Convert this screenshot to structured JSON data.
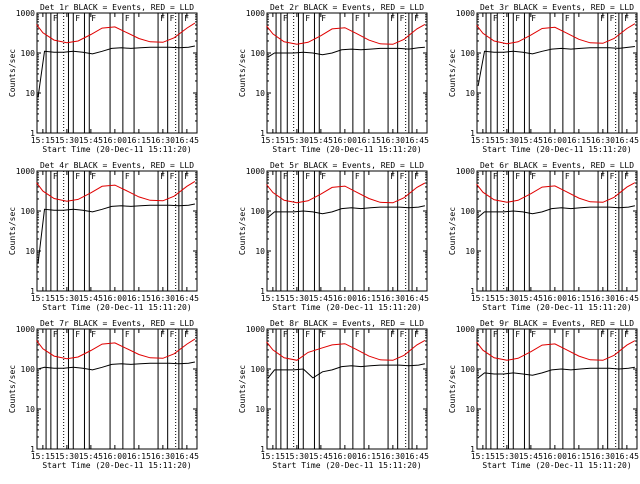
{
  "colors": {
    "events": "#000000",
    "lld": "#e00000",
    "axis": "#000000",
    "background": "#ffffff"
  },
  "chart_data": [
    {
      "type": "line",
      "title": "Det 1r BLACK = Events, RED = LLD",
      "xlabel": "Start Time (20-Dec-11 15:11:20)",
      "ylabel": "Counts/sec",
      "x_ticklabels": [
        "15:15",
        "15:30",
        "15:45",
        "16:00",
        "16:15",
        "16:30",
        "16:45"
      ],
      "y_ticklabels": [
        "1",
        "10",
        "100",
        "1000"
      ],
      "ylim": [
        1,
        1000
      ],
      "yscale": "log",
      "grid": false,
      "flag_labels": [
        "F",
        "F",
        "F",
        "F",
        "F",
        "F",
        "F"
      ],
      "series": [
        {
          "color": "#e00000",
          "x": [
            "15:11",
            "15:15",
            "15:22",
            "15:30",
            "15:37",
            "15:45",
            "15:52",
            "16:00",
            "16:07",
            "16:15",
            "16:22",
            "16:30",
            "16:37",
            "16:45",
            "16:50"
          ],
          "y": [
            520,
            320,
            210,
            180,
            200,
            290,
            420,
            450,
            330,
            230,
            190,
            185,
            240,
            420,
            560
          ]
        },
        {
          "color": "#000000",
          "x": [
            "15:12",
            "15:16",
            "15:22",
            "15:28",
            "15:34",
            "15:40",
            "15:46",
            "15:52",
            "15:58",
            "16:04",
            "16:10",
            "16:16",
            "16:22",
            "16:28",
            "16:34",
            "16:40",
            "16:46",
            "16:50"
          ],
          "y": [
            8,
            110,
            105,
            105,
            110,
            105,
            95,
            110,
            130,
            135,
            130,
            135,
            140,
            140,
            140,
            135,
            140,
            150
          ]
        }
      ]
    },
    {
      "type": "line",
      "title": "Det 2r BLACK = Events, RED = LLD",
      "xlabel": "Start Time (20-Dec-11 15:11:20)",
      "ylabel": "Counts/sec",
      "x_ticklabels": [
        "15:15",
        "15:30",
        "15:45",
        "16:00",
        "16:15",
        "16:30",
        "16:45"
      ],
      "y_ticklabels": [
        "1",
        "10",
        "100",
        "1000"
      ],
      "ylim": [
        1,
        1000
      ],
      "yscale": "log",
      "grid": false,
      "flag_labels": [
        "F",
        "F",
        "F",
        "F",
        "F",
        "F",
        "F"
      ],
      "series": [
        {
          "color": "#e00000",
          "x": [
            "15:11",
            "15:15",
            "15:22",
            "15:30",
            "15:37",
            "15:45",
            "15:52",
            "16:00",
            "16:07",
            "16:15",
            "16:22",
            "16:30",
            "16:37",
            "16:45",
            "16:50"
          ],
          "y": [
            480,
            300,
            190,
            165,
            185,
            270,
            400,
            430,
            310,
            210,
            170,
            165,
            220,
            400,
            520
          ]
        },
        {
          "color": "#000000",
          "x": [
            "15:12",
            "15:16",
            "15:22",
            "15:28",
            "15:34",
            "15:40",
            "15:46",
            "15:52",
            "15:58",
            "16:04",
            "16:10",
            "16:16",
            "16:22",
            "16:28",
            "16:34",
            "16:40",
            "16:46",
            "16:50"
          ],
          "y": [
            80,
            100,
            100,
            100,
            105,
            100,
            90,
            100,
            120,
            125,
            120,
            125,
            130,
            130,
            130,
            125,
            135,
            140
          ]
        }
      ]
    },
    {
      "type": "line",
      "title": "Det 3r BLACK = Events, RED = LLD",
      "xlabel": "Start Time (20-Dec-11 15:11:20)",
      "ylabel": "Counts/sec",
      "x_ticklabels": [
        "15:15",
        "15:30",
        "15:45",
        "16:00",
        "16:15",
        "16:30",
        "16:45"
      ],
      "y_ticklabels": [
        "1",
        "10",
        "100",
        "1000"
      ],
      "ylim": [
        1,
        1000
      ],
      "yscale": "log",
      "grid": false,
      "flag_labels": [
        "F",
        "F",
        "F",
        "F",
        "F",
        "F",
        "F"
      ],
      "series": [
        {
          "color": "#e00000",
          "x": [
            "15:11",
            "15:15",
            "15:22",
            "15:30",
            "15:37",
            "15:45",
            "15:52",
            "16:00",
            "16:07",
            "16:15",
            "16:22",
            "16:30",
            "16:37",
            "16:45",
            "16:50"
          ],
          "y": [
            500,
            310,
            200,
            170,
            190,
            280,
            410,
            440,
            320,
            220,
            180,
            175,
            230,
            410,
            540
          ]
        },
        {
          "color": "#000000",
          "x": [
            "15:12",
            "15:16",
            "15:22",
            "15:28",
            "15:34",
            "15:40",
            "15:46",
            "15:52",
            "15:58",
            "16:04",
            "16:10",
            "16:16",
            "16:22",
            "16:28",
            "16:34",
            "16:40",
            "16:46",
            "16:50"
          ],
          "y": [
            15,
            110,
            105,
            105,
            110,
            105,
            95,
            110,
            125,
            130,
            125,
            130,
            135,
            135,
            135,
            130,
            140,
            145
          ]
        }
      ]
    },
    {
      "type": "line",
      "title": "Det 4r BLACK = Events, RED = LLD",
      "xlabel": "Start Time (20-Dec-11 15:11:20)",
      "ylabel": "Counts/sec",
      "x_ticklabels": [
        "15:15",
        "15:30",
        "15:45",
        "16:00",
        "16:15",
        "16:30",
        "16:45"
      ],
      "y_ticklabels": [
        "1",
        "10",
        "100",
        "1000"
      ],
      "ylim": [
        1,
        1000
      ],
      "yscale": "log",
      "grid": false,
      "flag_labels": [
        "F",
        "F",
        "F",
        "F",
        "F",
        "F",
        "F"
      ],
      "series": [
        {
          "color": "#e00000",
          "x": [
            "15:11",
            "15:15",
            "15:22",
            "15:30",
            "15:37",
            "15:45",
            "15:52",
            "16:00",
            "16:07",
            "16:15",
            "16:22",
            "16:30",
            "16:37",
            "16:45",
            "16:50"
          ],
          "y": [
            510,
            315,
            205,
            175,
            195,
            285,
            415,
            445,
            325,
            225,
            185,
            180,
            235,
            415,
            550
          ]
        },
        {
          "color": "#000000",
          "x": [
            "15:12",
            "15:16",
            "15:22",
            "15:28",
            "15:34",
            "15:40",
            "15:46",
            "15:52",
            "15:58",
            "16:04",
            "16:10",
            "16:16",
            "16:22",
            "16:28",
            "16:34",
            "16:40",
            "16:46",
            "16:50"
          ],
          "y": [
            5,
            110,
            105,
            105,
            110,
            105,
            95,
            110,
            130,
            135,
            130,
            135,
            140,
            140,
            140,
            135,
            140,
            150
          ]
        }
      ]
    },
    {
      "type": "line",
      "title": "Det 5r BLACK = Events, RED = LLD",
      "xlabel": "Start Time (20-Dec-11 15:11:20)",
      "ylabel": "Counts/sec",
      "x_ticklabels": [
        "15:15",
        "15:30",
        "15:45",
        "16:00",
        "16:15",
        "16:30",
        "16:45"
      ],
      "y_ticklabels": [
        "1",
        "10",
        "100",
        "1000"
      ],
      "ylim": [
        1,
        1000
      ],
      "yscale": "log",
      "grid": false,
      "flag_labels": [
        "F",
        "F",
        "F",
        "F",
        "F",
        "F",
        "F"
      ],
      "series": [
        {
          "color": "#e00000",
          "x": [
            "15:11",
            "15:15",
            "15:22",
            "15:30",
            "15:37",
            "15:45",
            "15:52",
            "16:00",
            "16:07",
            "16:15",
            "16:22",
            "16:30",
            "16:37",
            "16:45",
            "16:50"
          ],
          "y": [
            460,
            290,
            185,
            160,
            180,
            265,
            390,
            420,
            300,
            205,
            165,
            160,
            215,
            390,
            500
          ]
        },
        {
          "color": "#000000",
          "x": [
            "15:12",
            "15:16",
            "15:22",
            "15:28",
            "15:34",
            "15:40",
            "15:46",
            "15:52",
            "15:58",
            "16:04",
            "16:10",
            "16:16",
            "16:22",
            "16:28",
            "16:34",
            "16:40",
            "16:46",
            "16:50"
          ],
          "y": [
            70,
            95,
            95,
            95,
            100,
            95,
            85,
            95,
            115,
            120,
            115,
            120,
            125,
            125,
            125,
            120,
            125,
            135
          ]
        }
      ]
    },
    {
      "type": "line",
      "title": "Det 6r BLACK = Events, RED = LLD",
      "xlabel": "Start Time (20-Dec-11 15:11:20)",
      "ylabel": "Counts/sec",
      "x_ticklabels": [
        "15:15",
        "15:30",
        "15:45",
        "16:00",
        "16:15",
        "16:30",
        "16:45"
      ],
      "y_ticklabels": [
        "1",
        "10",
        "100",
        "1000"
      ],
      "ylim": [
        1,
        1000
      ],
      "yscale": "log",
      "grid": false,
      "flag_labels": [
        "F",
        "F",
        "F",
        "F",
        "F",
        "F",
        "F"
      ],
      "series": [
        {
          "color": "#e00000",
          "x": [
            "15:11",
            "15:15",
            "15:22",
            "15:30",
            "15:37",
            "15:45",
            "15:52",
            "16:00",
            "16:07",
            "16:15",
            "16:22",
            "16:30",
            "16:37",
            "16:45",
            "16:50"
          ],
          "y": [
            470,
            295,
            190,
            165,
            185,
            270,
            395,
            425,
            305,
            210,
            170,
            165,
            220,
            395,
            510
          ]
        },
        {
          "color": "#000000",
          "x": [
            "15:12",
            "15:16",
            "15:22",
            "15:28",
            "15:34",
            "15:40",
            "15:46",
            "15:52",
            "15:58",
            "16:04",
            "16:10",
            "16:16",
            "16:22",
            "16:28",
            "16:34",
            "16:40",
            "16:46",
            "16:50"
          ],
          "y": [
            70,
            95,
            95,
            95,
            100,
            95,
            85,
            95,
            115,
            120,
            115,
            120,
            125,
            125,
            125,
            120,
            125,
            135
          ]
        }
      ]
    },
    {
      "type": "line",
      "title": "Det 7r BLACK = Events, RED = LLD",
      "xlabel": "Start Time (20-Dec-11 15:11:20)",
      "ylabel": "Counts/sec",
      "x_ticklabels": [
        "15:15",
        "15:30",
        "15:45",
        "16:00",
        "16:15",
        "16:30",
        "16:45"
      ],
      "y_ticklabels": [
        "1",
        "10",
        "100",
        "1000"
      ],
      "ylim": [
        1,
        1000
      ],
      "yscale": "log",
      "grid": false,
      "flag_labels": [
        "F",
        "F",
        "F",
        "F",
        "F",
        "F",
        "F"
      ],
      "series": [
        {
          "color": "#e00000",
          "x": [
            "15:11",
            "15:15",
            "15:22",
            "15:30",
            "15:37",
            "15:45",
            "15:52",
            "16:00",
            "16:07",
            "16:15",
            "16:22",
            "16:30",
            "16:37",
            "16:45",
            "16:50"
          ],
          "y": [
            520,
            320,
            210,
            180,
            200,
            290,
            420,
            450,
            330,
            230,
            190,
            185,
            240,
            420,
            560
          ]
        },
        {
          "color": "#000000",
          "x": [
            "15:12",
            "15:16",
            "15:22",
            "15:28",
            "15:34",
            "15:40",
            "15:46",
            "15:52",
            "15:58",
            "16:04",
            "16:10",
            "16:16",
            "16:22",
            "16:28",
            "16:34",
            "16:40",
            "16:46",
            "16:50"
          ],
          "y": [
            100,
            110,
            105,
            105,
            110,
            105,
            95,
            110,
            130,
            135,
            130,
            135,
            140,
            140,
            140,
            135,
            140,
            150
          ]
        }
      ]
    },
    {
      "type": "line",
      "title": "Det 8r BLACK = Events, RED = LLD",
      "xlabel": "Start Time (20-Dec-11 15:11:20)",
      "ylabel": "Counts/sec",
      "x_ticklabels": [
        "15:15",
        "15:30",
        "15:45",
        "16:00",
        "16:15",
        "16:30",
        "16:45"
      ],
      "y_ticklabels": [
        "1",
        "10",
        "100",
        "1000"
      ],
      "ylim": [
        1,
        1000
      ],
      "yscale": "log",
      "grid": false,
      "flag_labels": [
        "F",
        "F",
        "F",
        "F",
        "F",
        "F",
        "F"
      ],
      "series": [
        {
          "color": "#e00000",
          "x": [
            "15:11",
            "15:15",
            "15:22",
            "15:30",
            "15:37",
            "15:45",
            "15:52",
            "16:00",
            "16:07",
            "16:15",
            "16:22",
            "16:30",
            "16:37",
            "16:45",
            "16:50"
          ],
          "y": [
            480,
            300,
            190,
            165,
            260,
            330,
            400,
            430,
            310,
            210,
            170,
            165,
            220,
            400,
            520
          ]
        },
        {
          "color": "#000000",
          "x": [
            "15:12",
            "15:16",
            "15:22",
            "15:28",
            "15:34",
            "15:40",
            "15:46",
            "15:52",
            "15:58",
            "16:04",
            "16:10",
            "16:16",
            "16:22",
            "16:28",
            "16:34",
            "16:40",
            "16:46",
            "16:50"
          ],
          "y": [
            60,
            95,
            95,
            95,
            100,
            60,
            85,
            95,
            115,
            120,
            115,
            120,
            125,
            125,
            125,
            120,
            125,
            135
          ]
        }
      ]
    },
    {
      "type": "line",
      "title": "Det 9r BLACK = Events, RED = LLD",
      "xlabel": "Start Time (20-Dec-11 15:11:20)",
      "ylabel": "Counts/sec",
      "x_ticklabels": [
        "15:15",
        "15:30",
        "15:45",
        "16:00",
        "16:15",
        "16:30",
        "16:45"
      ],
      "y_ticklabels": [
        "1",
        "10",
        "100",
        "1000"
      ],
      "ylim": [
        1,
        1000
      ],
      "yscale": "log",
      "grid": false,
      "flag_labels": [
        "F",
        "F",
        "F",
        "F",
        "F",
        "F",
        "F"
      ],
      "series": [
        {
          "color": "#e00000",
          "x": [
            "15:11",
            "15:15",
            "15:22",
            "15:30",
            "15:37",
            "15:45",
            "15:52",
            "16:00",
            "16:07",
            "16:15",
            "16:22",
            "16:30",
            "16:37",
            "16:45",
            "16:50"
          ],
          "y": [
            470,
            295,
            190,
            165,
            185,
            270,
            395,
            425,
            305,
            210,
            170,
            165,
            220,
            395,
            510
          ]
        },
        {
          "color": "#000000",
          "x": [
            "15:12",
            "15:16",
            "15:22",
            "15:28",
            "15:34",
            "15:40",
            "15:46",
            "15:52",
            "15:58",
            "16:04",
            "16:10",
            "16:16",
            "16:22",
            "16:28",
            "16:34",
            "16:40",
            "16:46",
            "16:50"
          ],
          "y": [
            60,
            80,
            75,
            75,
            80,
            75,
            70,
            80,
            95,
            100,
            95,
            100,
            105,
            105,
            105,
            100,
            105,
            110
          ]
        }
      ]
    }
  ]
}
